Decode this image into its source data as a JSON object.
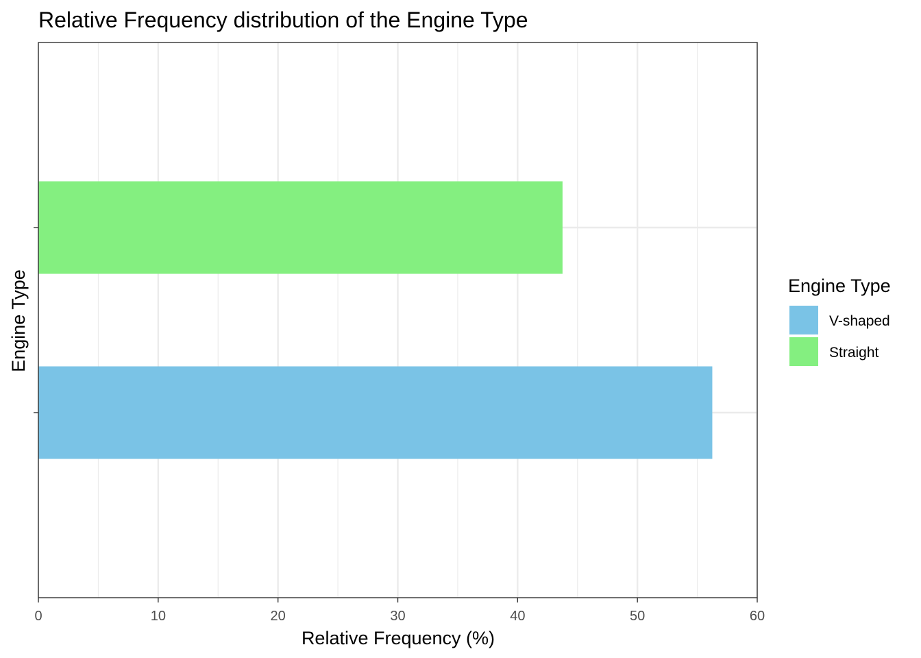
{
  "chart_data": {
    "type": "bar",
    "orientation": "horizontal",
    "title": "Relative Frequency distribution of the Engine Type",
    "xlabel": "Relative Frequency (%)",
    "ylabel": "Engine Type",
    "xlim": [
      0,
      60
    ],
    "x_ticks": [
      0,
      10,
      20,
      30,
      40,
      50,
      60
    ],
    "categories": [
      "V-shaped",
      "Straight"
    ],
    "values": [
      56.25,
      43.75
    ],
    "colors": [
      "#7AC3E6",
      "#84EF80"
    ],
    "grid": true,
    "legend": {
      "title": "Engine Type",
      "position": "right",
      "entries": [
        {
          "label": "V-shaped",
          "color": "#7AC3E6"
        },
        {
          "label": "Straight",
          "color": "#84EF80"
        }
      ]
    }
  }
}
